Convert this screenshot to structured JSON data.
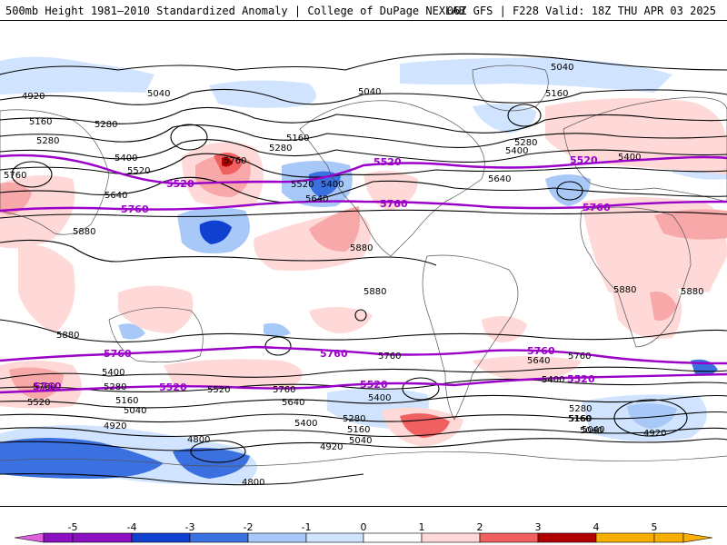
{
  "header": {
    "title_left": "500mb Height 1981–2010 Standardized Anomaly | College of DuPage NEXLAB",
    "title_right": "06Z GFS | F228 Valid: 18Z THU APR 03 2025"
  },
  "colors": {
    "anomaly_scale": [
      "#e060e0",
      "#8a10c0",
      "#1040d0",
      "#3a70e0",
      "#a8c8f8",
      "#d0e4ff",
      "#ffffff",
      "#ffd8d8",
      "#f8a8a8",
      "#f06060",
      "#d02020",
      "#b00000",
      "#f8b000"
    ],
    "thick_contours": "#9a00c8",
    "thin_contours": "#000000",
    "coastlines": "#555555"
  },
  "contour_labels": [
    "5040",
    "5040",
    "5040",
    "4920",
    "5160",
    "5160",
    "5160",
    "5280",
    "5280",
    "5280",
    "5280",
    "5400",
    "5400",
    "5400",
    "5400",
    "5520",
    "5520",
    "5640",
    "5640",
    "5640",
    "5760",
    "5760",
    "5880",
    "5880",
    "5880",
    "5880",
    "5880",
    "5880",
    "5760",
    "5760",
    "5640",
    "5640",
    "5400",
    "5400",
    "5400",
    "5400",
    "5280",
    "5280",
    "5280",
    "5160",
    "5160",
    "5160",
    "5040",
    "5040",
    "5040",
    "4920",
    "4920",
    "4920",
    "4800",
    "4800",
    "5520",
    "5520",
    "5160",
    "5040",
    "5760",
    "5760"
  ],
  "purple_labels": [
    "5520",
    "5520",
    "5520",
    "5760",
    "5760",
    "5760",
    "5760",
    "5760",
    "5520",
    "5520",
    "5520",
    "5760",
    "5760"
  ],
  "colorbar": {
    "ticks": [
      "-5",
      "-4",
      "-3",
      "-2",
      "-1",
      "0",
      "1",
      "2",
      "3",
      "4",
      "5"
    ]
  }
}
